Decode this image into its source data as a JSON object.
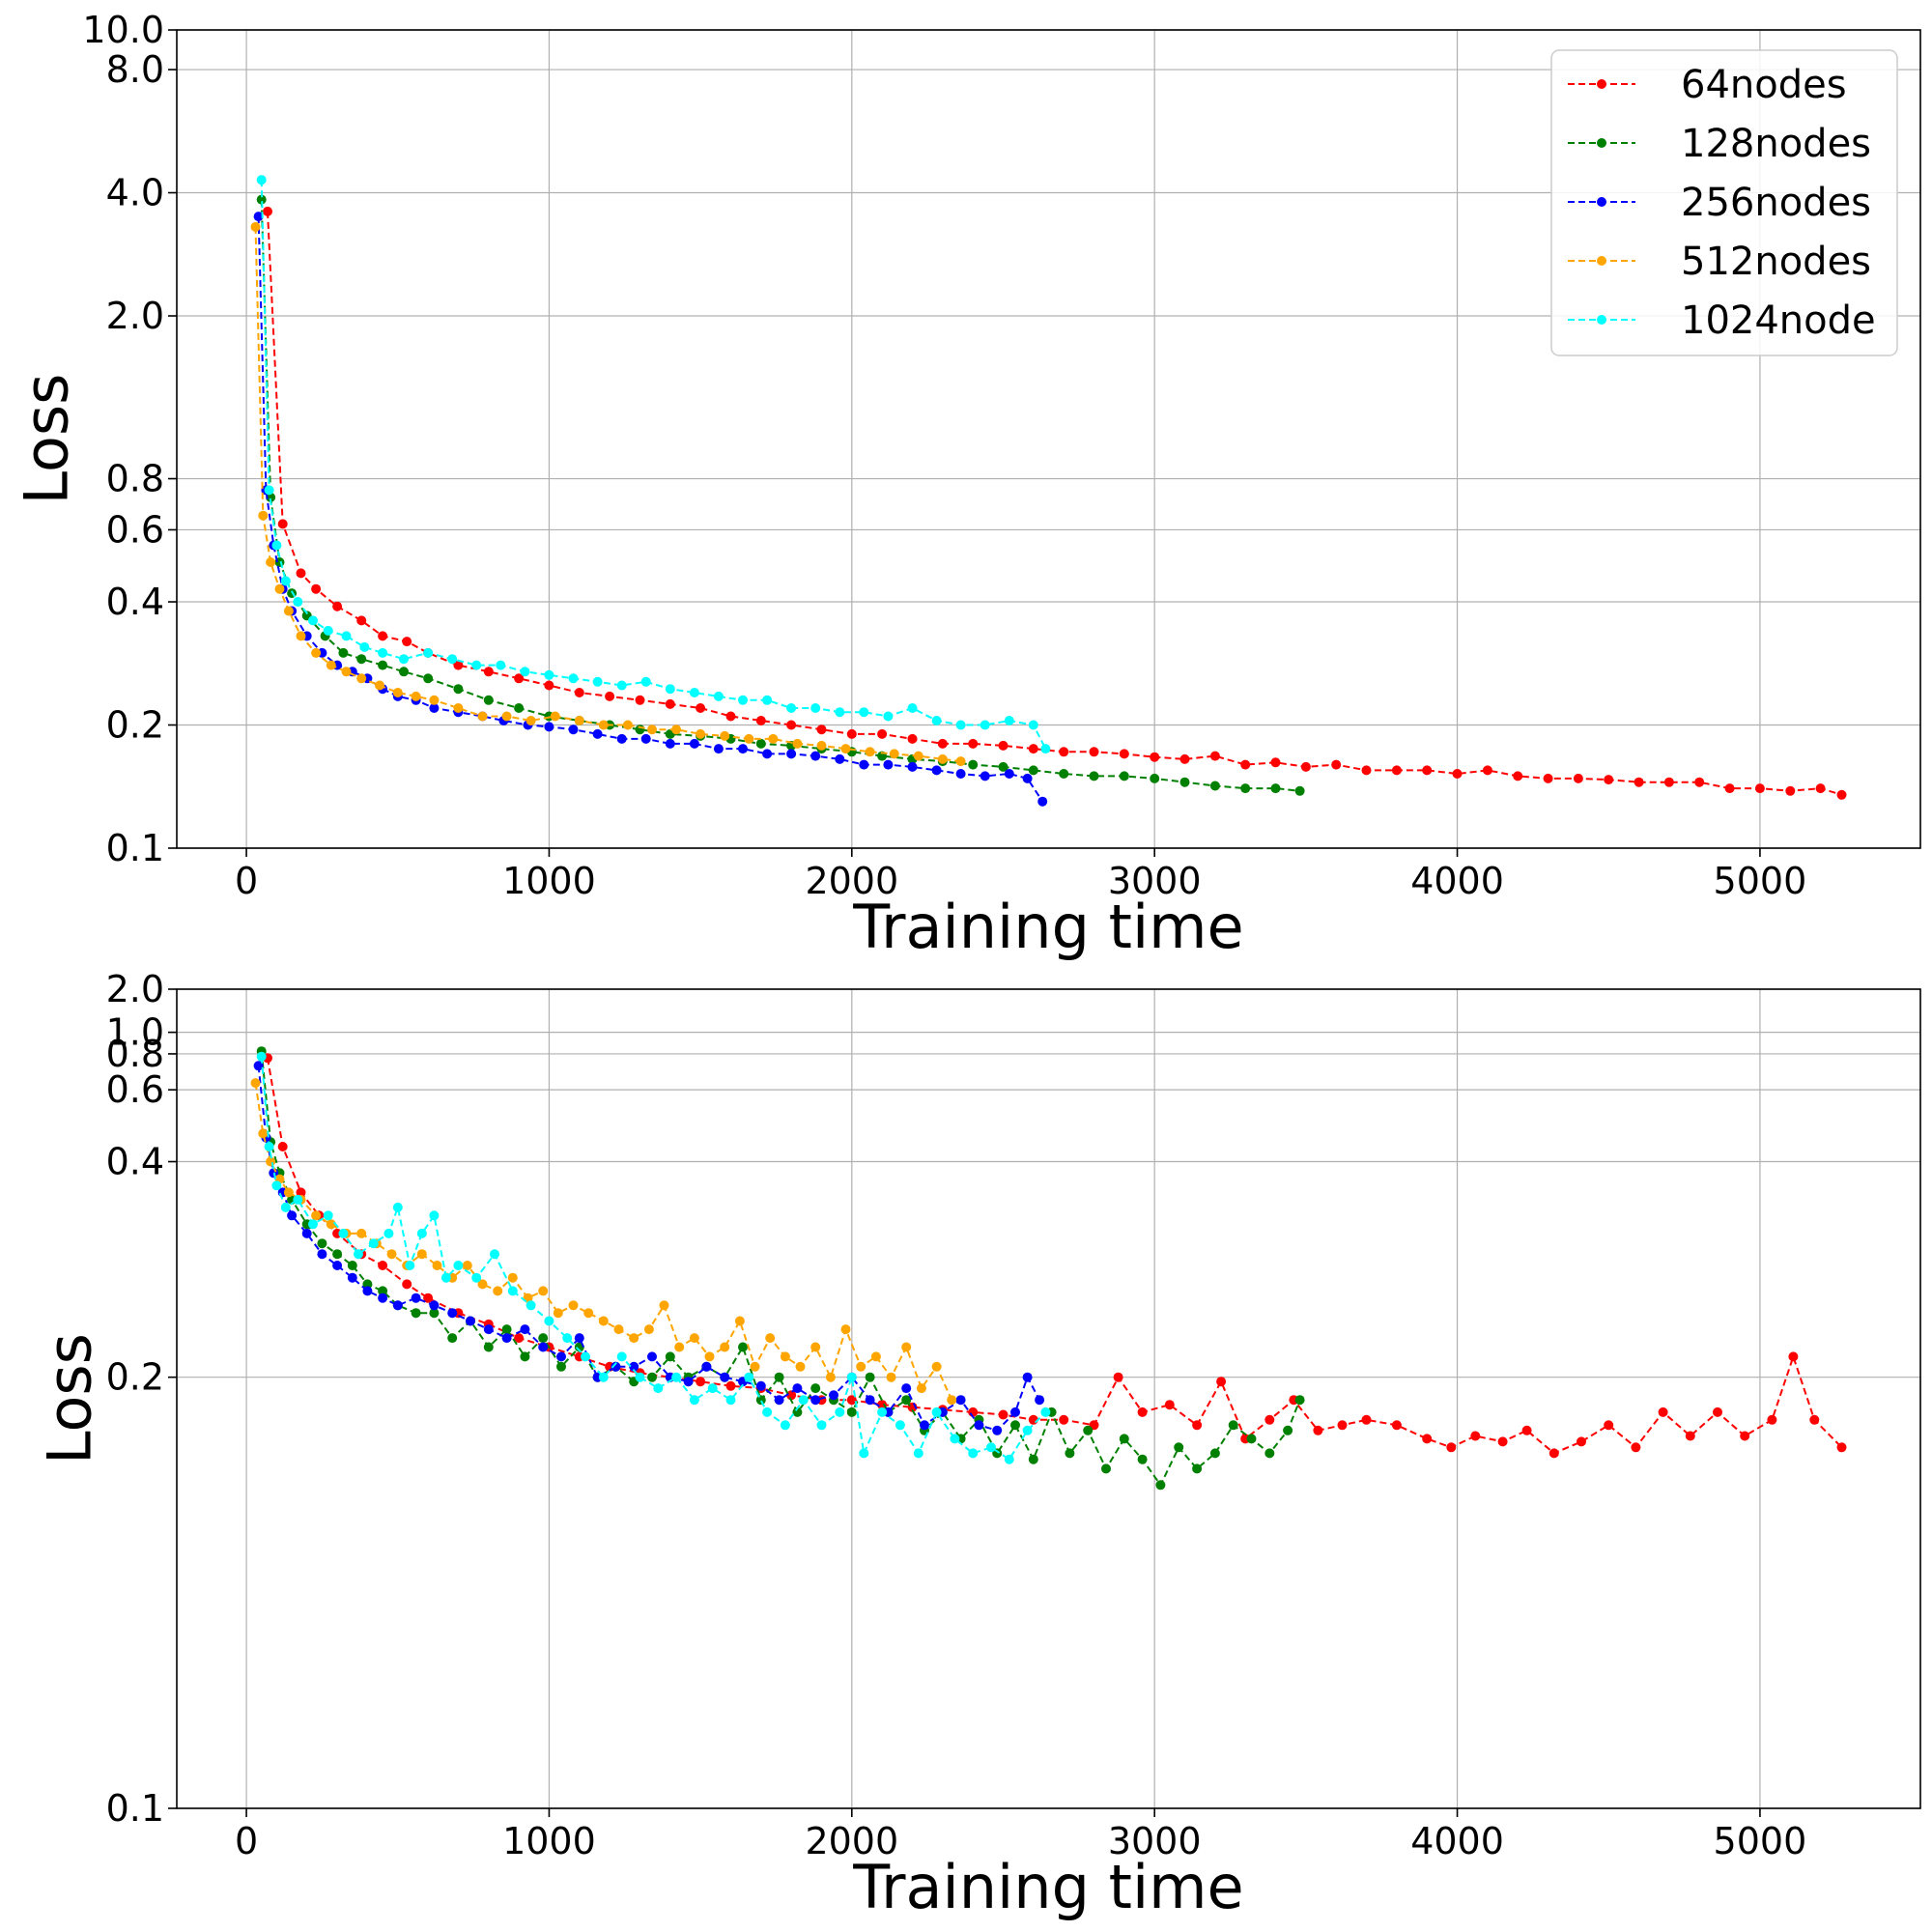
{
  "chart_data": [
    {
      "type": "line",
      "title": "",
      "xlabel": "Training time",
      "ylabel": "Loss",
      "xlim": [
        -230,
        5530
      ],
      "ylim": [
        0.1,
        10.0
      ],
      "y_scale": "log",
      "x_ticks": [
        "0",
        "1000",
        "2000",
        "3000",
        "4000",
        "5000"
      ],
      "y_ticks": [
        "0.1",
        "0.2",
        "0.4",
        "0.6",
        "0.8",
        "2.0",
        "4.0",
        "8.0",
        "10.0"
      ],
      "grid": true,
      "legend_position": "top-right",
      "series": [
        {
          "name": "64nodes",
          "color": "#ff0000",
          "x": [
            70,
            120,
            180,
            230,
            300,
            380,
            450,
            530,
            600,
            700,
            800,
            900,
            1000,
            1100,
            1200,
            1300,
            1400,
            1500,
            1600,
            1700,
            1800,
            1900,
            2000,
            2100,
            2200,
            2300,
            2400,
            2500,
            2600,
            2700,
            2800,
            2900,
            3000,
            3100,
            3200,
            3300,
            3400,
            3500,
            3600,
            3700,
            3800,
            3900,
            4000,
            4100,
            4200,
            4300,
            4400,
            4500,
            4600,
            4700,
            4800,
            4900,
            5000,
            5100,
            5200,
            5270
          ],
          "y": [
            3.6,
            0.62,
            0.47,
            0.43,
            0.39,
            0.36,
            0.33,
            0.32,
            0.3,
            0.28,
            0.27,
            0.26,
            0.25,
            0.24,
            0.235,
            0.23,
            0.225,
            0.22,
            0.21,
            0.205,
            0.2,
            0.195,
            0.19,
            0.19,
            0.185,
            0.18,
            0.18,
            0.178,
            0.175,
            0.172,
            0.172,
            0.17,
            0.167,
            0.165,
            0.168,
            0.16,
            0.162,
            0.158,
            0.16,
            0.155,
            0.155,
            0.155,
            0.152,
            0.155,
            0.15,
            0.148,
            0.148,
            0.147,
            0.145,
            0.145,
            0.145,
            0.14,
            0.14,
            0.138,
            0.14,
            0.135
          ]
        },
        {
          "name": "128nodes",
          "color": "#008000",
          "x": [
            50,
            80,
            110,
            150,
            200,
            260,
            320,
            380,
            450,
            520,
            600,
            700,
            800,
            900,
            1000,
            1100,
            1200,
            1300,
            1400,
            1500,
            1600,
            1700,
            1800,
            1900,
            2000,
            2100,
            2200,
            2300,
            2400,
            2500,
            2600,
            2700,
            2800,
            2900,
            3000,
            3100,
            3200,
            3300,
            3400,
            3480
          ],
          "y": [
            3.85,
            0.72,
            0.5,
            0.42,
            0.37,
            0.33,
            0.3,
            0.29,
            0.28,
            0.27,
            0.26,
            0.245,
            0.23,
            0.22,
            0.21,
            0.205,
            0.2,
            0.195,
            0.19,
            0.188,
            0.185,
            0.18,
            0.178,
            0.175,
            0.172,
            0.168,
            0.165,
            0.163,
            0.16,
            0.158,
            0.155,
            0.152,
            0.15,
            0.15,
            0.148,
            0.145,
            0.142,
            0.14,
            0.14,
            0.138
          ]
        },
        {
          "name": "256nodes",
          "color": "#0000ff",
          "x": [
            40,
            65,
            90,
            120,
            150,
            200,
            250,
            300,
            350,
            400,
            450,
            500,
            560,
            620,
            700,
            780,
            850,
            930,
            1000,
            1080,
            1160,
            1240,
            1320,
            1400,
            1480,
            1560,
            1640,
            1720,
            1800,
            1880,
            1960,
            2040,
            2120,
            2200,
            2280,
            2360,
            2440,
            2520,
            2580,
            2630
          ],
          "y": [
            3.5,
            0.75,
            0.55,
            0.43,
            0.38,
            0.33,
            0.3,
            0.28,
            0.27,
            0.26,
            0.245,
            0.235,
            0.23,
            0.22,
            0.215,
            0.21,
            0.205,
            0.2,
            0.198,
            0.195,
            0.19,
            0.185,
            0.185,
            0.18,
            0.18,
            0.175,
            0.175,
            0.17,
            0.17,
            0.168,
            0.165,
            0.16,
            0.16,
            0.158,
            0.155,
            0.152,
            0.15,
            0.152,
            0.148,
            0.13
          ]
        },
        {
          "name": "512nodes",
          "color": "#ffa500",
          "x": [
            30,
            55,
            80,
            110,
            140,
            180,
            230,
            280,
            330,
            380,
            440,
            500,
            560,
            620,
            700,
            780,
            860,
            940,
            1020,
            1100,
            1180,
            1260,
            1340,
            1420,
            1500,
            1580,
            1660,
            1740,
            1820,
            1900,
            1980,
            2060,
            2140,
            2220,
            2300,
            2360
          ],
          "y": [
            3.3,
            0.65,
            0.5,
            0.43,
            0.38,
            0.33,
            0.3,
            0.28,
            0.27,
            0.26,
            0.25,
            0.24,
            0.235,
            0.23,
            0.22,
            0.21,
            0.21,
            0.205,
            0.21,
            0.205,
            0.2,
            0.2,
            0.195,
            0.195,
            0.19,
            0.188,
            0.185,
            0.185,
            0.18,
            0.178,
            0.175,
            0.172,
            0.17,
            0.168,
            0.165,
            0.163
          ]
        },
        {
          "name": "1024node",
          "color": "#00ffff",
          "x": [
            50,
            75,
            100,
            130,
            170,
            220,
            270,
            330,
            390,
            450,
            520,
            600,
            680,
            760,
            840,
            920,
            1000,
            1080,
            1160,
            1240,
            1320,
            1400,
            1480,
            1560,
            1640,
            1720,
            1800,
            1880,
            1960,
            2040,
            2120,
            2200,
            2280,
            2360,
            2440,
            2520,
            2600,
            2640
          ],
          "y": [
            4.3,
            0.75,
            0.55,
            0.45,
            0.4,
            0.36,
            0.34,
            0.33,
            0.31,
            0.3,
            0.29,
            0.3,
            0.29,
            0.28,
            0.28,
            0.27,
            0.265,
            0.26,
            0.255,
            0.25,
            0.255,
            0.245,
            0.24,
            0.235,
            0.23,
            0.23,
            0.22,
            0.22,
            0.215,
            0.215,
            0.21,
            0.22,
            0.205,
            0.2,
            0.2,
            0.205,
            0.2,
            0.175
          ]
        }
      ]
    },
    {
      "type": "line",
      "title": "",
      "xlabel": "Training time",
      "ylabel": "Loss",
      "xlim": [
        -230,
        5530
      ],
      "ylim": [
        0.1,
        2.0
      ],
      "y_scale": "reciprocal",
      "x_ticks": [
        "0",
        "1000",
        "2000",
        "3000",
        "4000",
        "5000"
      ],
      "y_ticks": [
        "0.1",
        "0.2",
        "0.4",
        "0.6",
        "0.8",
        "1.0",
        "2.0"
      ],
      "grid": true,
      "series": [
        {
          "name": "64nodes",
          "color": "#ff0000",
          "x": [
            70,
            120,
            180,
            240,
            300,
            380,
            450,
            530,
            600,
            700,
            800,
            900,
            1000,
            1100,
            1200,
            1300,
            1400,
            1500,
            1600,
            1700,
            1800,
            1900,
            2000,
            2100,
            2200,
            2300,
            2400,
            2500,
            2600,
            2700,
            2800,
            2880,
            2960,
            3050,
            3140,
            3220,
            3300,
            3380,
            3460,
            3540,
            3620,
            3700,
            3800,
            3900,
            3980,
            4060,
            4150,
            4230,
            4320,
            4410,
            4500,
            4590,
            4680,
            4770,
            4860,
            4950,
            5040,
            5110,
            5180,
            5270
          ],
          "y": [
            0.77,
            0.43,
            0.35,
            0.32,
            0.3,
            0.28,
            0.27,
            0.255,
            0.245,
            0.235,
            0.228,
            0.22,
            0.215,
            0.21,
            0.205,
            0.202,
            0.2,
            0.198,
            0.196,
            0.195,
            0.192,
            0.19,
            0.19,
            0.188,
            0.187,
            0.186,
            0.185,
            0.184,
            0.182,
            0.182,
            0.18,
            0.2,
            0.185,
            0.188,
            0.18,
            0.198,
            0.175,
            0.182,
            0.19,
            0.178,
            0.18,
            0.182,
            0.18,
            0.175,
            0.172,
            0.176,
            0.174,
            0.178,
            0.17,
            0.174,
            0.18,
            0.172,
            0.185,
            0.176,
            0.185,
            0.176,
            0.182,
            0.21,
            0.182,
            0.172
          ]
        },
        {
          "name": "128nodes",
          "color": "#008000",
          "x": [
            50,
            80,
            110,
            150,
            200,
            250,
            300,
            350,
            400,
            450,
            500,
            560,
            620,
            680,
            740,
            800,
            860,
            920,
            980,
            1040,
            1100,
            1160,
            1220,
            1280,
            1340,
            1400,
            1460,
            1520,
            1580,
            1640,
            1700,
            1760,
            1820,
            1880,
            1940,
            2000,
            2060,
            2120,
            2180,
            2240,
            2300,
            2360,
            2420,
            2480,
            2540,
            2600,
            2660,
            2720,
            2780,
            2840,
            2900,
            2960,
            3020,
            3080,
            3140,
            3200,
            3260,
            3320,
            3380,
            3440,
            3480
          ],
          "y": [
            0.82,
            0.44,
            0.38,
            0.34,
            0.31,
            0.29,
            0.28,
            0.27,
            0.255,
            0.25,
            0.24,
            0.235,
            0.235,
            0.22,
            0.23,
            0.215,
            0.225,
            0.21,
            0.22,
            0.205,
            0.215,
            0.2,
            0.205,
            0.198,
            0.2,
            0.21,
            0.2,
            0.205,
            0.2,
            0.215,
            0.19,
            0.2,
            0.185,
            0.195,
            0.19,
            0.185,
            0.2,
            0.185,
            0.19,
            0.178,
            0.185,
            0.175,
            0.182,
            0.17,
            0.18,
            0.168,
            0.185,
            0.17,
            0.178,
            0.165,
            0.175,
            0.168,
            0.16,
            0.172,
            0.165,
            0.17,
            0.18,
            0.175,
            0.17,
            0.178,
            0.19
          ]
        },
        {
          "name": "256nodes",
          "color": "#0000ff",
          "x": [
            40,
            65,
            90,
            120,
            150,
            200,
            250,
            300,
            350,
            400,
            450,
            500,
            560,
            620,
            680,
            740,
            800,
            860,
            920,
            980,
            1040,
            1100,
            1160,
            1220,
            1280,
            1340,
            1400,
            1460,
            1520,
            1580,
            1640,
            1700,
            1760,
            1820,
            1880,
            1940,
            2000,
            2060,
            2120,
            2180,
            2240,
            2300,
            2360,
            2420,
            2480,
            2540,
            2580,
            2620
          ],
          "y": [
            0.72,
            0.45,
            0.38,
            0.35,
            0.32,
            0.3,
            0.28,
            0.27,
            0.26,
            0.25,
            0.245,
            0.24,
            0.245,
            0.24,
            0.235,
            0.23,
            0.225,
            0.22,
            0.225,
            0.215,
            0.21,
            0.22,
            0.2,
            0.205,
            0.205,
            0.21,
            0.2,
            0.198,
            0.205,
            0.2,
            0.198,
            0.196,
            0.19,
            0.195,
            0.19,
            0.192,
            0.2,
            0.19,
            0.185,
            0.195,
            0.18,
            0.185,
            0.19,
            0.18,
            0.178,
            0.185,
            0.2,
            0.19
          ]
        },
        {
          "name": "512nodes",
          "color": "#ffa500",
          "x": [
            30,
            55,
            80,
            110,
            140,
            180,
            230,
            280,
            330,
            380,
            430,
            480,
            530,
            580,
            630,
            680,
            730,
            780,
            830,
            880,
            930,
            980,
            1030,
            1080,
            1130,
            1180,
            1230,
            1280,
            1330,
            1380,
            1430,
            1480,
            1530,
            1580,
            1630,
            1680,
            1730,
            1780,
            1830,
            1880,
            1930,
            1980,
            2030,
            2080,
            2130,
            2180,
            2230,
            2280,
            2330
          ],
          "y": [
            0.63,
            0.46,
            0.4,
            0.37,
            0.35,
            0.34,
            0.32,
            0.31,
            0.3,
            0.3,
            0.29,
            0.28,
            0.27,
            0.28,
            0.27,
            0.26,
            0.27,
            0.255,
            0.25,
            0.26,
            0.245,
            0.25,
            0.235,
            0.24,
            0.235,
            0.23,
            0.225,
            0.22,
            0.225,
            0.24,
            0.215,
            0.22,
            0.21,
            0.215,
            0.23,
            0.205,
            0.22,
            0.21,
            0.205,
            0.215,
            0.2,
            0.225,
            0.205,
            0.21,
            0.2,
            0.215,
            0.195,
            0.205,
            0.19
          ]
        },
        {
          "name": "1024node",
          "color": "#00ffff",
          "x": [
            50,
            75,
            100,
            130,
            170,
            220,
            270,
            320,
            370,
            420,
            470,
            500,
            540,
            580,
            620,
            660,
            700,
            760,
            820,
            880,
            940,
            1000,
            1060,
            1120,
            1180,
            1240,
            1300,
            1360,
            1420,
            1480,
            1540,
            1600,
            1660,
            1720,
            1780,
            1840,
            1900,
            1960,
            2000,
            2040,
            2100,
            2160,
            2220,
            2280,
            2340,
            2400,
            2460,
            2520,
            2580,
            2640
          ],
          "y": [
            0.78,
            0.43,
            0.36,
            0.33,
            0.34,
            0.31,
            0.32,
            0.3,
            0.28,
            0.29,
            0.3,
            0.33,
            0.27,
            0.3,
            0.32,
            0.26,
            0.27,
            0.26,
            0.28,
            0.25,
            0.24,
            0.23,
            0.22,
            0.21,
            0.2,
            0.21,
            0.2,
            0.195,
            0.2,
            0.19,
            0.195,
            0.19,
            0.2,
            0.185,
            0.18,
            0.19,
            0.18,
            0.185,
            0.2,
            0.17,
            0.185,
            0.18,
            0.17,
            0.185,
            0.175,
            0.17,
            0.172,
            0.168,
            0.178,
            0.185
          ]
        }
      ]
    }
  ]
}
